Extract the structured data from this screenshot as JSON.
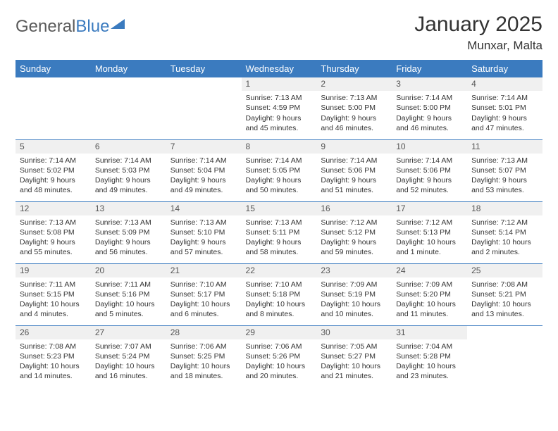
{
  "brand": {
    "part1": "General",
    "part2": "Blue"
  },
  "title": "January 2025",
  "location": "Munxar, Malta",
  "header_bg": "#3b7bbf",
  "header_fg": "#ffffff",
  "daynum_bg": "#f0f0f0",
  "border_color": "#3b7bbf",
  "text_color": "#333333",
  "weekdays": [
    "Sunday",
    "Monday",
    "Tuesday",
    "Wednesday",
    "Thursday",
    "Friday",
    "Saturday"
  ],
  "cells": [
    [
      null,
      null,
      null,
      {
        "n": "1",
        "sr": "7:13 AM",
        "ss": "4:59 PM",
        "dl": "9 hours and 45 minutes."
      },
      {
        "n": "2",
        "sr": "7:13 AM",
        "ss": "5:00 PM",
        "dl": "9 hours and 46 minutes."
      },
      {
        "n": "3",
        "sr": "7:14 AM",
        "ss": "5:00 PM",
        "dl": "9 hours and 46 minutes."
      },
      {
        "n": "4",
        "sr": "7:14 AM",
        "ss": "5:01 PM",
        "dl": "9 hours and 47 minutes."
      }
    ],
    [
      {
        "n": "5",
        "sr": "7:14 AM",
        "ss": "5:02 PM",
        "dl": "9 hours and 48 minutes."
      },
      {
        "n": "6",
        "sr": "7:14 AM",
        "ss": "5:03 PM",
        "dl": "9 hours and 49 minutes."
      },
      {
        "n": "7",
        "sr": "7:14 AM",
        "ss": "5:04 PM",
        "dl": "9 hours and 49 minutes."
      },
      {
        "n": "8",
        "sr": "7:14 AM",
        "ss": "5:05 PM",
        "dl": "9 hours and 50 minutes."
      },
      {
        "n": "9",
        "sr": "7:14 AM",
        "ss": "5:06 PM",
        "dl": "9 hours and 51 minutes."
      },
      {
        "n": "10",
        "sr": "7:14 AM",
        "ss": "5:06 PM",
        "dl": "9 hours and 52 minutes."
      },
      {
        "n": "11",
        "sr": "7:13 AM",
        "ss": "5:07 PM",
        "dl": "9 hours and 53 minutes."
      }
    ],
    [
      {
        "n": "12",
        "sr": "7:13 AM",
        "ss": "5:08 PM",
        "dl": "9 hours and 55 minutes."
      },
      {
        "n": "13",
        "sr": "7:13 AM",
        "ss": "5:09 PM",
        "dl": "9 hours and 56 minutes."
      },
      {
        "n": "14",
        "sr": "7:13 AM",
        "ss": "5:10 PM",
        "dl": "9 hours and 57 minutes."
      },
      {
        "n": "15",
        "sr": "7:13 AM",
        "ss": "5:11 PM",
        "dl": "9 hours and 58 minutes."
      },
      {
        "n": "16",
        "sr": "7:12 AM",
        "ss": "5:12 PM",
        "dl": "9 hours and 59 minutes."
      },
      {
        "n": "17",
        "sr": "7:12 AM",
        "ss": "5:13 PM",
        "dl": "10 hours and 1 minute."
      },
      {
        "n": "18",
        "sr": "7:12 AM",
        "ss": "5:14 PM",
        "dl": "10 hours and 2 minutes."
      }
    ],
    [
      {
        "n": "19",
        "sr": "7:11 AM",
        "ss": "5:15 PM",
        "dl": "10 hours and 4 minutes."
      },
      {
        "n": "20",
        "sr": "7:11 AM",
        "ss": "5:16 PM",
        "dl": "10 hours and 5 minutes."
      },
      {
        "n": "21",
        "sr": "7:10 AM",
        "ss": "5:17 PM",
        "dl": "10 hours and 6 minutes."
      },
      {
        "n": "22",
        "sr": "7:10 AM",
        "ss": "5:18 PM",
        "dl": "10 hours and 8 minutes."
      },
      {
        "n": "23",
        "sr": "7:09 AM",
        "ss": "5:19 PM",
        "dl": "10 hours and 10 minutes."
      },
      {
        "n": "24",
        "sr": "7:09 AM",
        "ss": "5:20 PM",
        "dl": "10 hours and 11 minutes."
      },
      {
        "n": "25",
        "sr": "7:08 AM",
        "ss": "5:21 PM",
        "dl": "10 hours and 13 minutes."
      }
    ],
    [
      {
        "n": "26",
        "sr": "7:08 AM",
        "ss": "5:23 PM",
        "dl": "10 hours and 14 minutes."
      },
      {
        "n": "27",
        "sr": "7:07 AM",
        "ss": "5:24 PM",
        "dl": "10 hours and 16 minutes."
      },
      {
        "n": "28",
        "sr": "7:06 AM",
        "ss": "5:25 PM",
        "dl": "10 hours and 18 minutes."
      },
      {
        "n": "29",
        "sr": "7:06 AM",
        "ss": "5:26 PM",
        "dl": "10 hours and 20 minutes."
      },
      {
        "n": "30",
        "sr": "7:05 AM",
        "ss": "5:27 PM",
        "dl": "10 hours and 21 minutes."
      },
      {
        "n": "31",
        "sr": "7:04 AM",
        "ss": "5:28 PM",
        "dl": "10 hours and 23 minutes."
      },
      null
    ]
  ]
}
